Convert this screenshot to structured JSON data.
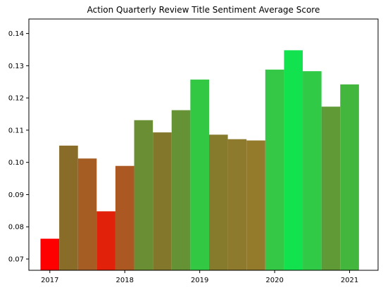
{
  "chart_data": {
    "type": "bar",
    "title": "Action Quarterly Review Title Sentiment Average Score",
    "xlabel": "",
    "ylabel": "",
    "x_ticks": [
      "2017",
      "2018",
      "2019",
      "2020",
      "2021"
    ],
    "x_tick_positions": [
      2017.0,
      2018.0,
      2019.0,
      2020.0,
      2021.0
    ],
    "y_ticks": [
      "0.07",
      "0.08",
      "0.09",
      "0.10",
      "0.11",
      "0.12",
      "0.13",
      "0.14"
    ],
    "y_tick_values": [
      0.07,
      0.08,
      0.09,
      0.1,
      0.11,
      0.12,
      0.13,
      0.14
    ],
    "ylim": [
      0.0665,
      0.1445
    ],
    "xlim": [
      2016.72,
      2021.38
    ],
    "grid": false,
    "series": [
      {
        "x": [
          2017.0,
          2017.25,
          2017.5,
          2017.75,
          2018.0,
          2018.25,
          2018.5,
          2018.75,
          2019.0,
          2019.25,
          2019.5,
          2019.75,
          2020.0,
          2020.25,
          2020.5,
          2020.75,
          2021.0
        ],
        "values": [
          0.0763,
          0.1052,
          0.1012,
          0.0848,
          0.0989,
          0.1131,
          0.1093,
          0.1162,
          0.1257,
          0.1086,
          0.1072,
          0.1068,
          0.1288,
          0.1348,
          0.1283,
          0.1173,
          0.1242
        ],
        "colors": [
          "#ff0000",
          "#8a6c29",
          "#a55d24",
          "#e12109",
          "#ac5822",
          "#6a8e34",
          "#83772c",
          "#659235",
          "#33c843",
          "#867a2d",
          "#8e7a2c",
          "#947a2b",
          "#34c846",
          "#12e24e",
          "#30ca47",
          "#5f9a37",
          "#43b63e"
        ]
      }
    ]
  }
}
